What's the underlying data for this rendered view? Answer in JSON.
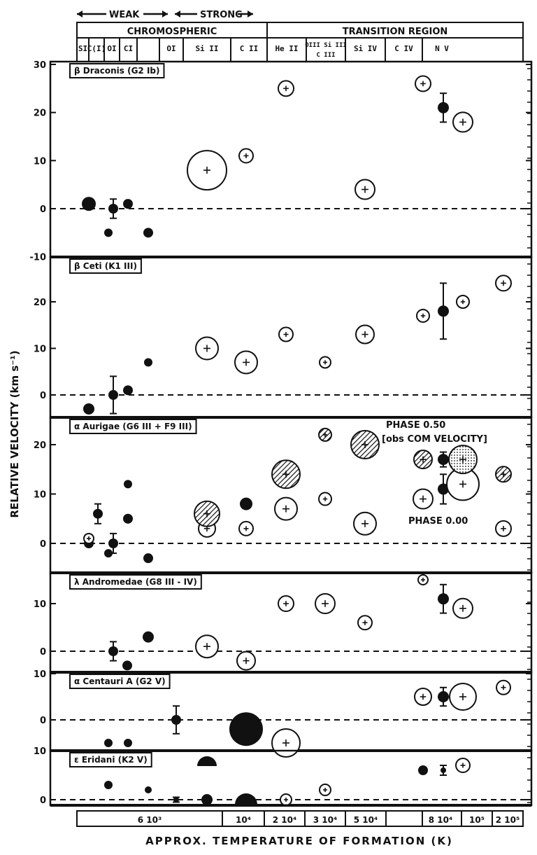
{
  "figure": {
    "ylabel": "RELATIVE VELOCITY (km s⁻¹)",
    "xlabel": "APPROX. TEMPERATURE OF FORMATION (K)",
    "weak_label": "WEAK",
    "strong_label": "STRONG",
    "chromospheric_label": "CHROMOSPHERIC",
    "transition_label": "TRANSITION REGION",
    "phase_050": "PHASE 0.50",
    "obs_com": "[obs COM VELOCITY]",
    "phase_000": "PHASE 0.00"
  },
  "ions": [
    "SI",
    "C(I)",
    "OI",
    "CI",
    "",
    "OI",
    "Si II",
    "C II",
    "He II",
    "OIII Si III C III",
    "Si IV",
    "C IV",
    "N V"
  ],
  "temperatures": [
    "6 10³",
    "10⁴",
    "2 10⁴",
    "3 10⁴",
    "5 10⁴",
    "8 10⁴",
    "10⁵",
    "2 10⁵"
  ],
  "chart_data": [
    {
      "type": "scatter",
      "title": "β Draconis (G2 Ib)",
      "ylim": [
        -10,
        30
      ],
      "yticks": [
        30,
        20,
        10,
        0,
        -10
      ],
      "points": [
        {
          "col": 1,
          "y": 1,
          "kind": "filled",
          "r": 10
        },
        {
          "col": 2,
          "y": -5,
          "kind": "filled",
          "r": 6
        },
        {
          "col": 3,
          "y": 0,
          "kind": "filled",
          "r": 7,
          "err": 2
        },
        {
          "col": 4,
          "y": 1,
          "kind": "filled",
          "r": 7
        },
        {
          "col": 5,
          "y": -5,
          "kind": "filled",
          "r": 7
        },
        {
          "col": 7,
          "y": 8,
          "kind": "open",
          "r": 28
        },
        {
          "col": 8,
          "y": 11,
          "kind": "open",
          "r": 10
        },
        {
          "col": 9,
          "y": 25,
          "kind": "open",
          "r": 11
        },
        {
          "col": 11,
          "y": 4,
          "kind": "open",
          "r": 14
        },
        {
          "col": 12,
          "y": 26,
          "kind": "open",
          "r": 11
        },
        {
          "col": 13,
          "y": 21,
          "kind": "filled",
          "r": 8,
          "err": 3
        },
        {
          "col": 14,
          "y": 18,
          "kind": "open",
          "r": 14
        }
      ]
    },
    {
      "type": "scatter",
      "title": "β Ceti (K1 III)",
      "ylim": [
        -3,
        28
      ],
      "yticks": [
        20,
        10,
        0
      ],
      "points": [
        {
          "col": 1,
          "y": -3,
          "kind": "filled",
          "r": 8
        },
        {
          "col": 3,
          "y": 0,
          "kind": "filled",
          "r": 7,
          "err": 4
        },
        {
          "col": 4,
          "y": 1,
          "kind": "filled",
          "r": 7
        },
        {
          "col": 5,
          "y": 7,
          "kind": "filled",
          "r": 6
        },
        {
          "col": 7,
          "y": 10,
          "kind": "open",
          "r": 16
        },
        {
          "col": 8,
          "y": 7,
          "kind": "open",
          "r": 16
        },
        {
          "col": 9,
          "y": 13,
          "kind": "open",
          "r": 10
        },
        {
          "col": 10,
          "y": 7,
          "kind": "open",
          "r": 8
        },
        {
          "col": 11,
          "y": 13,
          "kind": "open",
          "r": 13
        },
        {
          "col": 12,
          "y": 17,
          "kind": "open",
          "r": 9
        },
        {
          "col": 13,
          "y": 18,
          "kind": "filled",
          "r": 8,
          "err": 6
        },
        {
          "col": 14,
          "y": 20,
          "kind": "open",
          "r": 9
        },
        {
          "col": 15,
          "y": 24,
          "kind": "open",
          "r": 11
        }
      ]
    },
    {
      "type": "scatter",
      "title": "α Aurigae (G6 III + F9 III)",
      "ylim": [
        -3,
        28
      ],
      "yticks": [
        20,
        10,
        0
      ],
      "points": [
        {
          "col": 1,
          "y": 0,
          "kind": "filled",
          "r": 7
        },
        {
          "col": 1,
          "y": 1,
          "kind": "open",
          "r": 7
        },
        {
          "col": 2,
          "y": -2,
          "kind": "filled",
          "r": 6
        },
        {
          "col": 2.5,
          "y": 6,
          "kind": "filled",
          "r": 7,
          "err": 2
        },
        {
          "col": 3,
          "y": 0,
          "kind": "filled",
          "r": 7,
          "err": 2
        },
        {
          "col": 4,
          "y": 5,
          "kind": "filled",
          "r": 7
        },
        {
          "col": 4,
          "y": 12,
          "kind": "filled",
          "r": 6
        },
        {
          "col": 5,
          "y": -3,
          "kind": "filled",
          "r": 7
        },
        {
          "col": 7,
          "y": 3,
          "kind": "open",
          "r": 12
        },
        {
          "col": 7,
          "y": 6,
          "kind": "hatched",
          "r": 18
        },
        {
          "col": 8,
          "y": 3,
          "kind": "open",
          "r": 10
        },
        {
          "col": 8,
          "y": 8,
          "kind": "filled",
          "r": 9
        },
        {
          "col": 9,
          "y": 7,
          "kind": "open",
          "r": 16
        },
        {
          "col": 9,
          "y": 14,
          "kind": "hatched",
          "r": 20
        },
        {
          "col": 10,
          "y": 9,
          "kind": "open",
          "r": 9
        },
        {
          "col": 10,
          "y": 22,
          "kind": "hatched",
          "r": 9
        },
        {
          "col": 11,
          "y": 4,
          "kind": "open",
          "r": 16
        },
        {
          "col": 11,
          "y": 20,
          "kind": "hatched",
          "r": 20
        },
        {
          "col": 12,
          "y": 9,
          "kind": "open",
          "r": 14
        },
        {
          "col": 12,
          "y": 17,
          "kind": "hatched",
          "r": 13
        },
        {
          "col": 13,
          "y": 11,
          "kind": "filled",
          "r": 8,
          "err": 3
        },
        {
          "col": 13,
          "y": 17,
          "kind": "filled",
          "r": 8,
          "err": 1.5
        },
        {
          "col": 14,
          "y": 12,
          "kind": "open",
          "r": 23
        },
        {
          "col": 14,
          "y": 17,
          "kind": "dotted",
          "r": 20
        },
        {
          "col": 15,
          "y": 3,
          "kind": "open",
          "r": 11
        },
        {
          "col": 15,
          "y": 14,
          "kind": "hatched",
          "r": 11
        }
      ]
    },
    {
      "type": "scatter",
      "title": "λ Andromedae (G8 III - IV)",
      "ylim": [
        -3,
        16
      ],
      "yticks": [
        10,
        0
      ],
      "points": [
        {
          "col": 3,
          "y": 0,
          "kind": "filled",
          "r": 7,
          "err": 2
        },
        {
          "col": 3.5,
          "y": -3,
          "kind": "filled",
          "r": 7
        },
        {
          "col": 5,
          "y": 3,
          "kind": "filled",
          "r": 8
        },
        {
          "col": 7,
          "y": 1,
          "kind": "open",
          "r": 16
        },
        {
          "col": 8,
          "y": -2,
          "kind": "open",
          "r": 13
        },
        {
          "col": 9,
          "y": 10,
          "kind": "open",
          "r": 11
        },
        {
          "col": 10,
          "y": 10,
          "kind": "open",
          "r": 14
        },
        {
          "col": 11,
          "y": 6,
          "kind": "open",
          "r": 10
        },
        {
          "col": 12,
          "y": 15,
          "kind": "open",
          "r": 7
        },
        {
          "col": 13,
          "y": 11,
          "kind": "filled",
          "r": 8,
          "err": 3
        },
        {
          "col": 14,
          "y": 9,
          "kind": "open",
          "r": 14
        }
      ]
    },
    {
      "type": "scatter",
      "title": "α Centauri A (G2 V)",
      "ylim": [
        -10,
        10
      ],
      "yticks": [
        10,
        0
      ],
      "points": [
        {
          "col": 2,
          "y": -5,
          "kind": "filled",
          "r": 6
        },
        {
          "col": 4,
          "y": -5,
          "kind": "filled",
          "r": 6
        },
        {
          "col": 6,
          "y": 0,
          "kind": "filled",
          "r": 7,
          "err": 3
        },
        {
          "col": 7,
          "y": -10,
          "kind": "filled_half",
          "r": 14
        },
        {
          "col": 8,
          "y": -2,
          "kind": "filled",
          "r": 24
        },
        {
          "col": 9,
          "y": -5,
          "kind": "open",
          "r": 20
        },
        {
          "col": 12,
          "y": 5,
          "kind": "open",
          "r": 12
        },
        {
          "col": 13,
          "y": 5,
          "kind": "filled",
          "r": 8,
          "err": 2
        },
        {
          "col": 14,
          "y": 5,
          "kind": "open",
          "r": 19
        },
        {
          "col": 15,
          "y": 7,
          "kind": "open",
          "r": 10
        }
      ]
    },
    {
      "type": "scatter",
      "title": "ε Eridani (K2 V)",
      "ylim": [
        -1,
        10
      ],
      "yticks": [
        10,
        0
      ],
      "points": [
        {
          "col": 2,
          "y": 3,
          "kind": "filled",
          "r": 6
        },
        {
          "col": 5,
          "y": 2,
          "kind": "filled",
          "r": 5
        },
        {
          "col": 6,
          "y": 0,
          "kind": "filled",
          "r": 4,
          "err": 0.5
        },
        {
          "col": 7,
          "y": 0,
          "kind": "filled",
          "r": 8
        },
        {
          "col": 8,
          "y": -1,
          "kind": "filled_half",
          "r": 16
        },
        {
          "col": 9,
          "y": 0,
          "kind": "open",
          "r": 8
        },
        {
          "col": 10,
          "y": 2,
          "kind": "open",
          "r": 8
        },
        {
          "col": 12,
          "y": 6,
          "kind": "filled",
          "r": 7
        },
        {
          "col": 13,
          "y": 6,
          "kind": "filled",
          "r": 4,
          "err": 1
        },
        {
          "col": 14,
          "y": 7,
          "kind": "open",
          "r": 10
        }
      ]
    }
  ]
}
